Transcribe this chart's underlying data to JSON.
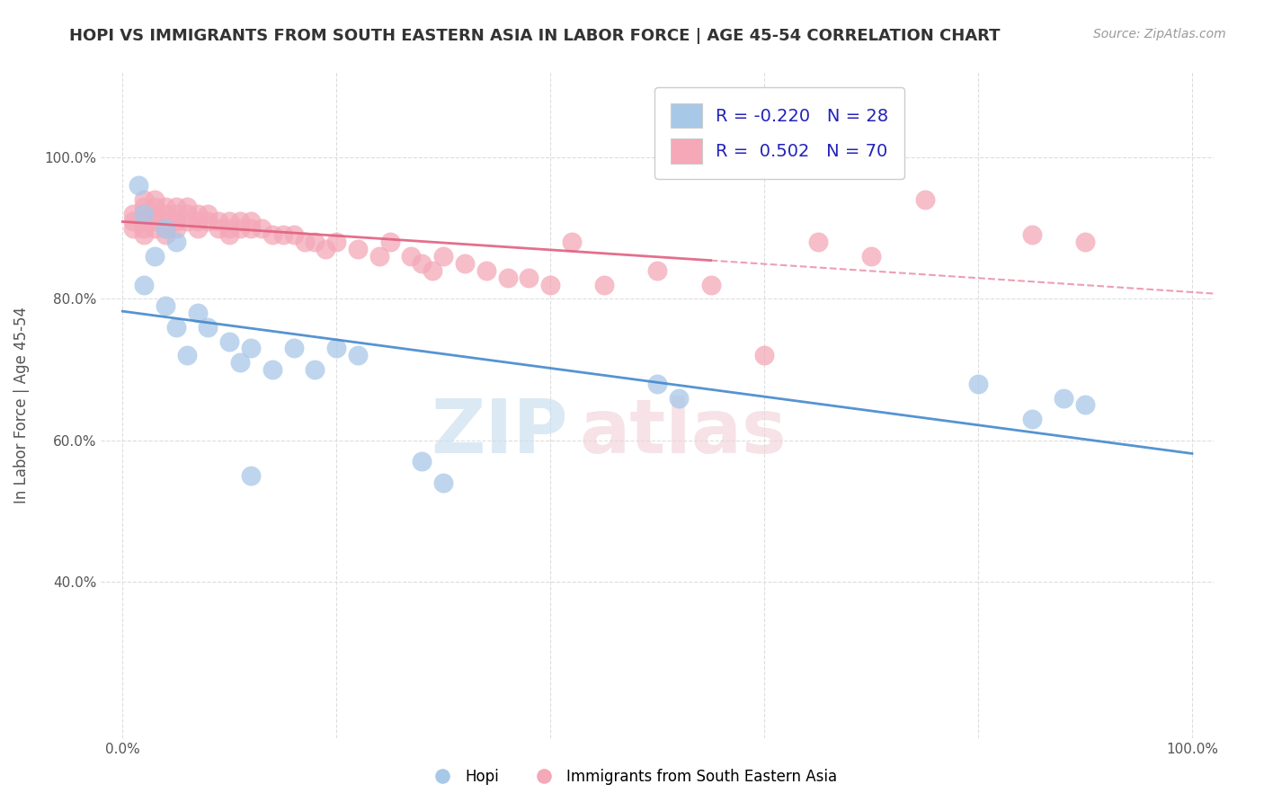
{
  "title": "HOPI VS IMMIGRANTS FROM SOUTH EASTERN ASIA IN LABOR FORCE | AGE 45-54 CORRELATION CHART",
  "source": "Source: ZipAtlas.com",
  "ylabel": "In Labor Force | Age 45-54",
  "xlim": [
    -0.02,
    1.02
  ],
  "ylim": [
    0.18,
    1.12
  ],
  "x_ticks": [
    0.0,
    0.2,
    0.4,
    0.6,
    0.8,
    1.0
  ],
  "y_ticks": [
    0.4,
    0.6,
    0.8,
    1.0
  ],
  "x_tick_labels": [
    "0.0%",
    "",
    "",
    "",
    "",
    "100.0%"
  ],
  "y_tick_labels": [
    "40.0%",
    "60.0%",
    "80.0%",
    "100.0%"
  ],
  "hopi_color": "#a8c8e8",
  "immigrants_color": "#f4a8b8",
  "hopi_line_color": "#4488cc",
  "immigrants_line_color": "#e06080",
  "R_hopi": -0.22,
  "N_hopi": 28,
  "R_immigrants": 0.502,
  "N_immigrants": 70,
  "hopi_x": [
    0.015,
    0.02,
    0.02,
    0.03,
    0.04,
    0.04,
    0.05,
    0.05,
    0.06,
    0.07,
    0.08,
    0.1,
    0.11,
    0.12,
    0.14,
    0.16,
    0.18,
    0.2,
    0.22,
    0.28,
    0.3,
    0.5,
    0.52,
    0.8,
    0.85,
    0.88,
    0.9,
    0.12
  ],
  "hopi_y": [
    0.96,
    0.92,
    0.82,
    0.86,
    0.9,
    0.79,
    0.88,
    0.76,
    0.72,
    0.78,
    0.76,
    0.74,
    0.71,
    0.73,
    0.7,
    0.73,
    0.7,
    0.73,
    0.72,
    0.57,
    0.54,
    0.68,
    0.66,
    0.68,
    0.63,
    0.66,
    0.65,
    0.55
  ],
  "immigrants_x": [
    0.01,
    0.01,
    0.01,
    0.02,
    0.02,
    0.02,
    0.02,
    0.02,
    0.02,
    0.03,
    0.03,
    0.03,
    0.03,
    0.03,
    0.04,
    0.04,
    0.04,
    0.04,
    0.04,
    0.05,
    0.05,
    0.05,
    0.05,
    0.06,
    0.06,
    0.06,
    0.07,
    0.07,
    0.07,
    0.08,
    0.08,
    0.09,
    0.09,
    0.1,
    0.1,
    0.1,
    0.11,
    0.11,
    0.12,
    0.12,
    0.13,
    0.14,
    0.15,
    0.16,
    0.17,
    0.18,
    0.19,
    0.2,
    0.22,
    0.24,
    0.25,
    0.27,
    0.28,
    0.29,
    0.3,
    0.32,
    0.34,
    0.36,
    0.38,
    0.4,
    0.42,
    0.45,
    0.5,
    0.55,
    0.6,
    0.65,
    0.7,
    0.75,
    0.85,
    0.9
  ],
  "immigrants_y": [
    0.92,
    0.91,
    0.9,
    0.94,
    0.93,
    0.92,
    0.91,
    0.9,
    0.89,
    0.94,
    0.93,
    0.92,
    0.91,
    0.9,
    0.93,
    0.92,
    0.91,
    0.9,
    0.89,
    0.93,
    0.92,
    0.91,
    0.9,
    0.93,
    0.92,
    0.91,
    0.92,
    0.91,
    0.9,
    0.92,
    0.91,
    0.91,
    0.9,
    0.91,
    0.9,
    0.89,
    0.91,
    0.9,
    0.91,
    0.9,
    0.9,
    0.89,
    0.89,
    0.89,
    0.88,
    0.88,
    0.87,
    0.88,
    0.87,
    0.86,
    0.88,
    0.86,
    0.85,
    0.84,
    0.86,
    0.85,
    0.84,
    0.83,
    0.83,
    0.82,
    0.88,
    0.82,
    0.84,
    0.82,
    0.72,
    0.88,
    0.86,
    0.94,
    0.89,
    0.88
  ],
  "background_color": "#ffffff",
  "grid_color": "#dddddd",
  "watermark_zip_color": "#cce0f0",
  "watermark_atlas_color": "#f0d0d8"
}
